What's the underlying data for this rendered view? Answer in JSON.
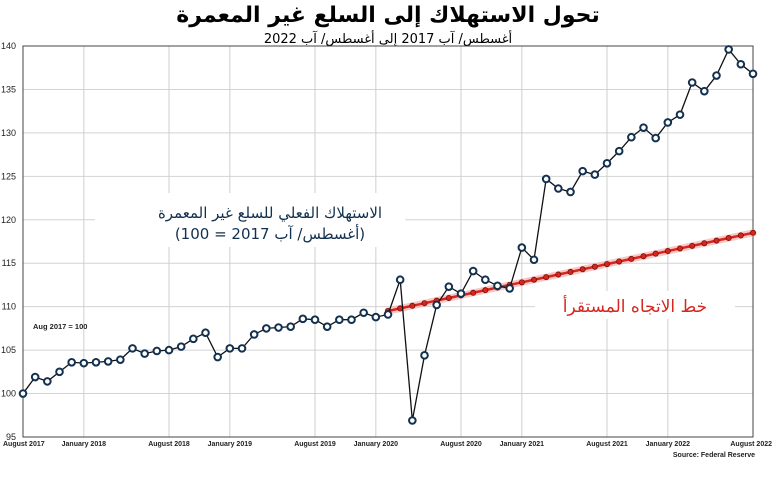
{
  "chart_data": {
    "type": "line",
    "title": "تحول الاستهلاك إلى السلع غير المعمرة",
    "subtitle": "أغسطس/ آب 2017 إلى أغسطس/ آب 2022",
    "note": "Aug 2017 = 100",
    "source": "Source: Federal Reserve",
    "ylim": [
      95,
      140
    ],
    "yticks": [
      "95",
      "100",
      "105",
      "110",
      "115",
      "120",
      "125",
      "130",
      "135",
      "140"
    ],
    "ytick_values": [
      95,
      100,
      105,
      110,
      115,
      120,
      125,
      130,
      135,
      140
    ],
    "x_tick_labels": [
      "August 2017",
      "January 2018",
      "August 2018",
      "January 2019",
      "August 2019",
      "January 2020",
      "August 2020",
      "January 2021",
      "August 2021",
      "January 2022",
      "August 2022"
    ],
    "x_tick_months": [
      0,
      5,
      12,
      17,
      24,
      29,
      36,
      41,
      48,
      53,
      60
    ],
    "grid": true,
    "series": [
      {
        "name": "الاستهلاك الفعلي للسلع غير المعمرة (أغسطس/ آب 2017 = 100)",
        "color": "#12304f",
        "marker_color": "#ffffff",
        "x": [
          0,
          1,
          2,
          3,
          4,
          5,
          6,
          7,
          8,
          9,
          10,
          11,
          12,
          13,
          14,
          15,
          16,
          17,
          18,
          19,
          20,
          21,
          22,
          23,
          24,
          25,
          26,
          27,
          28,
          29,
          30,
          31,
          32,
          33,
          34,
          35,
          36,
          37,
          38,
          39,
          40,
          41,
          42,
          43,
          44,
          45,
          46,
          47,
          48,
          49,
          50,
          51,
          52,
          53,
          54,
          55,
          56,
          57,
          58,
          59,
          60
        ],
        "values": [
          100.0,
          101.9,
          101.4,
          102.5,
          103.6,
          103.5,
          103.6,
          103.7,
          103.9,
          105.2,
          104.6,
          104.9,
          105.0,
          105.4,
          106.3,
          107.0,
          104.2,
          105.2,
          105.2,
          106.8,
          107.5,
          107.6,
          107.7,
          108.6,
          108.5,
          107.7,
          108.5,
          108.5,
          109.3,
          108.8,
          109.1,
          113.1,
          96.9,
          104.4,
          110.2,
          112.3,
          111.5,
          114.1,
          113.1,
          112.4,
          112.1,
          116.8,
          115.4,
          124.7,
          123.6,
          123.2,
          125.6,
          125.2,
          126.5,
          127.9,
          129.5,
          130.6,
          129.4,
          131.2,
          132.1,
          135.8,
          134.8,
          136.6,
          139.6,
          137.9,
          136.8
        ]
      },
      {
        "name": "خط الاتجاه المستقرأ",
        "color": "#d7261e",
        "x": [
          30,
          31,
          32,
          33,
          34,
          35,
          36,
          37,
          38,
          39,
          40,
          41,
          42,
          43,
          44,
          45,
          46,
          47,
          48,
          49,
          50,
          51,
          52,
          53,
          54,
          55,
          56,
          57,
          58,
          59,
          60
        ],
        "values": [
          109.5,
          109.8,
          110.1,
          110.4,
          110.7,
          111.0,
          111.3,
          111.6,
          111.9,
          112.2,
          112.5,
          112.8,
          113.1,
          113.4,
          113.7,
          114.0,
          114.3,
          114.6,
          114.9,
          115.2,
          115.5,
          115.8,
          116.1,
          116.4,
          116.7,
          117.0,
          117.3,
          117.6,
          117.9,
          118.2,
          118.5
        ]
      }
    ],
    "annotations": {
      "actual_line1": "الاستهلاك الفعلي للسلع غير المعمرة",
      "actual_line2": "(أغسطس/ آب 2017 = 100)",
      "trend": "خط الاتجاه المستقرأ"
    }
  }
}
